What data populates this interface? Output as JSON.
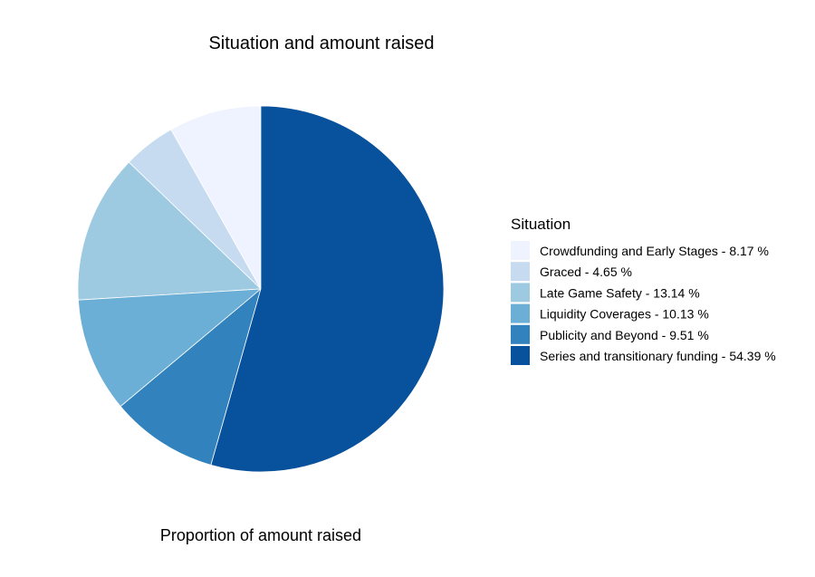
{
  "chart_data": {
    "type": "pie",
    "title": "Situation and amount raised",
    "xlabel": "Proportion of amount raised",
    "legend_title": "Situation",
    "legend_position": "right",
    "slices": [
      {
        "label": "Crowdfunding and Early Stages - 8.17 %",
        "category": "Crowdfunding and Early Stages",
        "value": 8.17,
        "color": "#EFF3FF"
      },
      {
        "label": "Graced - 4.65 %",
        "category": "Graced",
        "value": 4.65,
        "color": "#C6DBEF"
      },
      {
        "label": "Late Game Safety - 13.14 %",
        "category": "Late Game Safety",
        "value": 13.14,
        "color": "#9ECAE1"
      },
      {
        "label": "Liquidity Coverages - 10.13 %",
        "category": "Liquidity Coverages",
        "value": 10.13,
        "color": "#6BAED6"
      },
      {
        "label": "Publicity and Beyond - 9.51 %",
        "category": "Publicity and Beyond",
        "value": 9.51,
        "color": "#3182BD"
      },
      {
        "label": "Series and transitionary funding - 54.39 %",
        "category": "Series and transitionary funding",
        "value": 54.39,
        "color": "#08519C"
      }
    ]
  }
}
